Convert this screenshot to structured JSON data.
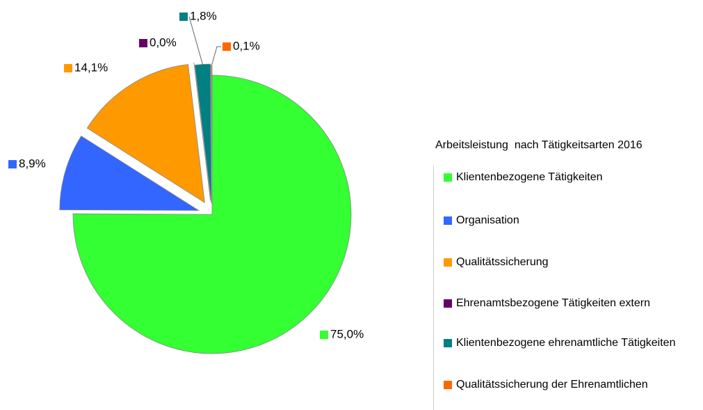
{
  "chart_data": {
    "type": "pie",
    "title": "Arbeitsleistung  nach Tätigkeitsarten 2016",
    "categories": [
      "Klientenbezogene Tätigkeiten",
      "Organisation",
      "Qualitätssicherung",
      "Ehrenamtsbezogene Tätigkeiten extern",
      "Klientenbezogene ehrenamtliche Tätigkeiten",
      "Qualitätssicherung der Ehrenamtlichen"
    ],
    "values": [
      75.0,
      8.9,
      14.1,
      0.0,
      1.8,
      0.1
    ],
    "value_labels": [
      "75,0%",
      "8,9%",
      "14,1%",
      "0,0%",
      "1,8%",
      "0,1%"
    ],
    "colors": [
      "#33ff33",
      "#3366ff",
      "#ff9900",
      "#660066",
      "#008080",
      "#ff6600"
    ]
  }
}
